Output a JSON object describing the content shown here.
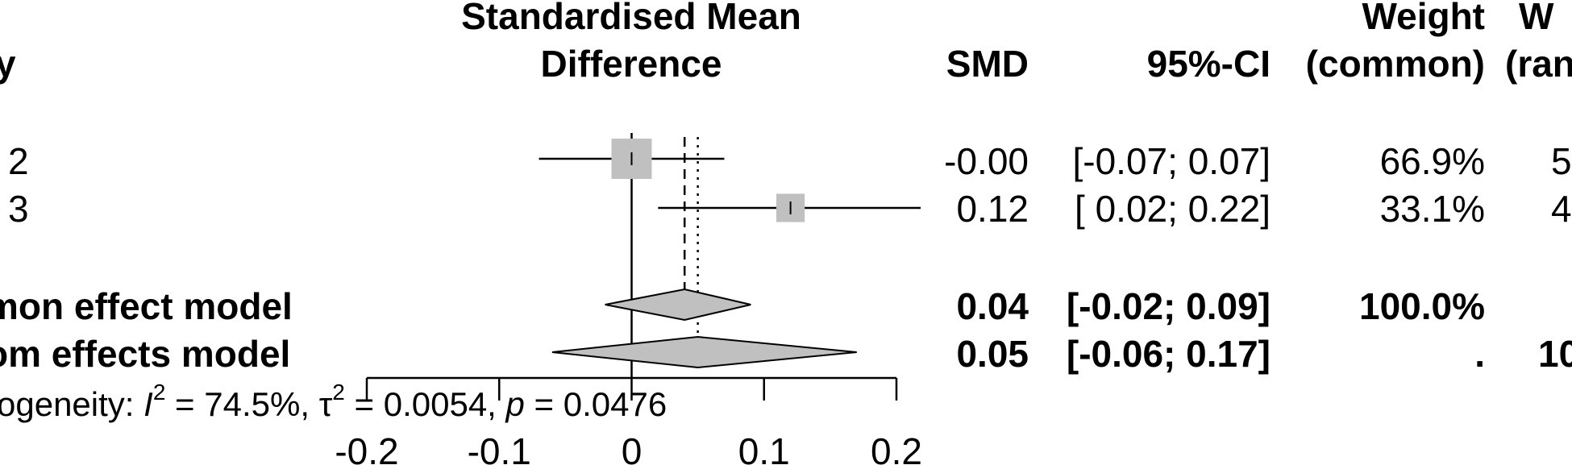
{
  "headers": {
    "study_fragment": "y",
    "plot_line1": "Standardised Mean",
    "plot_line2": "Difference",
    "smd": "SMD",
    "ci": "95%-CI",
    "weight_common_line1": "Weight",
    "weight_common_line2": "(common)",
    "weight_random_line1": "W",
    "weight_random_line2": "(ran"
  },
  "rows": [
    {
      "label": "2",
      "smd": "-0.00",
      "ci": "[-0.07; 0.07]",
      "w_common": "66.9%",
      "w_random": "5",
      "bold": false
    },
    {
      "label": "3",
      "smd": "0.12",
      "ci": "[ 0.02; 0.22]",
      "w_common": "33.1%",
      "w_random": "4",
      "bold": false
    },
    {
      "label": "mon effect model",
      "smd": "0.04",
      "ci": "[-0.02; 0.09]",
      "w_common": "100.0%",
      "w_random": "",
      "bold": true
    },
    {
      "label": "om effects model",
      "smd": "0.05",
      "ci": "[-0.06; 0.17]",
      "w_common": ".",
      "w_random": "10",
      "bold": true
    }
  ],
  "heterogeneity": {
    "prefix": "ogeneity: ",
    "i2_symbol": "I",
    "sup": "2",
    "i2_value": " = 74.5%, ",
    "tau_symbol": "τ",
    "tau_value": " = 0.0054, ",
    "p_symbol": "p",
    "p_value": " = 0.0476"
  },
  "chart_data": {
    "type": "forest",
    "xlim": [
      -0.2,
      0.2
    ],
    "xticks": [
      -0.2,
      -0.1,
      0,
      0.1,
      0.2
    ],
    "xtick_labels": [
      "-0.2",
      "-0.1",
      "0",
      "0.1",
      "0.2"
    ],
    "null_line": 0,
    "common_effect_line": 0.04,
    "random_effect_line": 0.05,
    "studies": [
      {
        "label": "2",
        "smd": 0.0,
        "lower": -0.07,
        "upper": 0.07,
        "weight_common": 66.9
      },
      {
        "label": "3",
        "smd": 0.12,
        "lower": 0.02,
        "upper": 0.22,
        "weight_common": 33.1
      }
    ],
    "pooled": [
      {
        "label": "mon effect model",
        "smd": 0.04,
        "lower": -0.02,
        "upper": 0.09
      },
      {
        "label": "om effects model",
        "smd": 0.05,
        "lower": -0.06,
        "upper": 0.17
      }
    ]
  }
}
